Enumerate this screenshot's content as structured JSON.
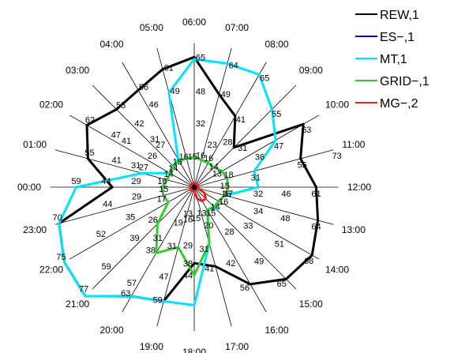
{
  "chart_data": {
    "type": "radar",
    "hours": [
      "00:00",
      "01:00",
      "02:00",
      "03:00",
      "04:00",
      "05:00",
      "06:00",
      "07:00",
      "08:00",
      "09:00",
      "10:00",
      "11:00",
      "12:00",
      "13:00",
      "14:00",
      "15:00",
      "16:00",
      "17:00",
      "18:00",
      "19:00",
      "20:00",
      "21:00",
      "22:00",
      "23:00"
    ],
    "radial_range": [
      0,
      75
    ],
    "legend_position": "top-right",
    "series": [
      {
        "name": "REW,1",
        "color": "#000000",
        "values": [
          41,
          55,
          62,
          55,
          56,
          61,
          65,
          48,
          41,
          28,
          63,
          55,
          61,
          64,
          68,
          65,
          56,
          41,
          38,
          59,
          63,
          77,
          75,
          70
        ]
      },
      {
        "name": "ES−,1",
        "color": "#0000ff",
        "values": [
          0,
          0,
          0,
          0,
          0,
          0,
          0,
          0,
          0,
          0,
          0,
          0,
          0,
          0,
          0,
          0,
          0,
          0,
          0,
          0,
          0,
          0,
          0,
          0
        ]
      },
      {
        "name": "MT,1",
        "color": "#00e5ff",
        "values": [
          59,
          27,
          14,
          15,
          16,
          49,
          64,
          64,
          65,
          55,
          47,
          31,
          32,
          16,
          14,
          15,
          13,
          29,
          59,
          59,
          63,
          77,
          75,
          70
        ]
      },
      {
        "name": "GRID−,1",
        "color": "#33cc33",
        "values": [
          16,
          14,
          14,
          15,
          15,
          15,
          15,
          14,
          14,
          14,
          16,
          17,
          17,
          16,
          14,
          14,
          13,
          29,
          44,
          31,
          38,
          26,
          15,
          16
        ]
      },
      {
        "name": "MG−,2",
        "color": "#ee2222",
        "values": [
          2,
          2,
          2,
          2,
          2,
          2,
          2,
          2,
          2,
          2,
          2,
          2,
          2,
          2,
          6,
          8,
          8,
          6,
          2,
          2,
          2,
          2,
          2,
          2
        ]
      }
    ],
    "labels": [
      [
        "16",
        "29",
        "44",
        "59"
      ],
      [
        "14",
        "27",
        "31",
        "41",
        "55"
      ],
      [
        "14",
        "26",
        "41",
        "47",
        "62"
      ],
      [
        "15",
        "27",
        "31",
        "42",
        "55"
      ],
      [
        "16",
        "46",
        "56"
      ],
      [
        "15",
        "49",
        "61"
      ],
      [
        "16",
        "32",
        "48",
        "65"
      ],
      [
        "16",
        "23",
        "49",
        "64"
      ],
      [
        "14",
        "28",
        "41",
        "65"
      ],
      [
        "13",
        "31",
        "55"
      ],
      [
        "18",
        "36",
        "47",
        "63"
      ],
      [
        "15",
        "31",
        "55",
        "73"
      ],
      [
        "16",
        "17",
        "32",
        "46",
        "61"
      ],
      [
        "16",
        "34",
        "48",
        "64"
      ],
      [
        "14",
        "33",
        "51",
        "68"
      ],
      [
        "15",
        "28",
        "49",
        "65"
      ],
      [
        "13",
        "20",
        "42",
        "56"
      ],
      [
        "15",
        "31",
        "41"
      ],
      [
        "16",
        "13",
        "29",
        "44",
        "38"
      ],
      [
        "19",
        "31",
        "47",
        "59"
      ],
      [
        "31",
        "38",
        "57",
        "63"
      ],
      [
        "26",
        "39",
        "59",
        "77"
      ],
      [
        "17",
        "35",
        "52",
        "75"
      ],
      [
        "15",
        "29",
        "44",
        "70"
      ]
    ]
  }
}
